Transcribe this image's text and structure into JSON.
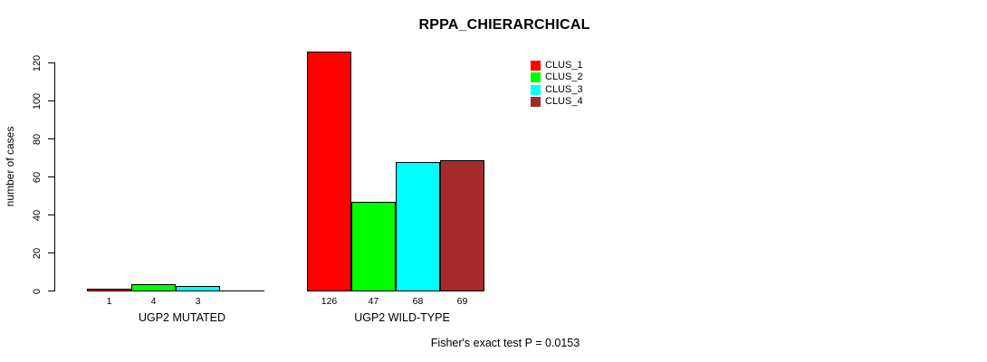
{
  "chart_data": {
    "type": "bar",
    "title": "RPPA_CHIERARCHICAL",
    "ylabel": "number of cases",
    "xlabel": "",
    "ylim": [
      0,
      120
    ],
    "yticks": [
      0,
      20,
      40,
      60,
      80,
      100,
      120
    ],
    "grid": false,
    "legend_position": "top-right",
    "categories": [
      "UGP2 MUTATED",
      "UGP2 WILD-TYPE"
    ],
    "series": [
      {
        "name": "CLUS_1",
        "color": "#ff0000",
        "values": [
          1,
          126
        ]
      },
      {
        "name": "CLUS_2",
        "color": "#00ff00",
        "values": [
          4,
          47
        ]
      },
      {
        "name": "CLUS_3",
        "color": "#00ffff",
        "values": [
          3,
          68
        ]
      },
      {
        "name": "CLUS_4",
        "color": "#a52a2a",
        "values": [
          0,
          69
        ]
      }
    ],
    "bar_value_labels": [
      "1",
      "4",
      "3",
      "126",
      "47",
      "68",
      "69"
    ],
    "show_zero_labels": false,
    "footnote": "Fisher's exact test P = 0.0153"
  },
  "colors": {
    "background": "#ffffff",
    "axis": "#000000",
    "text": "#000000"
  }
}
